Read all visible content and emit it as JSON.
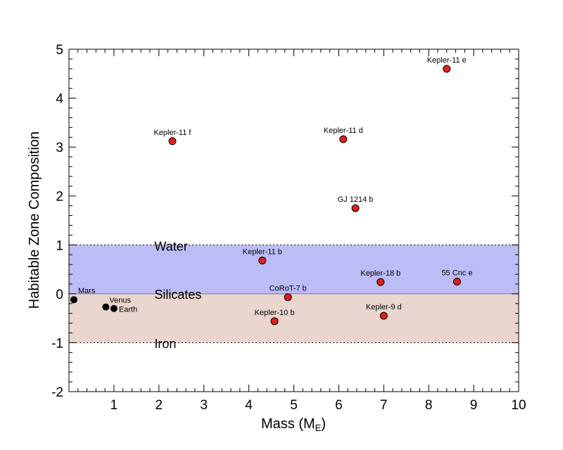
{
  "chart_data": {
    "type": "scatter",
    "xlabel": "Mass (M",
    "xlabel_sub": "E",
    "xlabel_close": ")",
    "ylabel": "Habitable Zone Composition",
    "xlim": [
      0,
      10
    ],
    "ylim": [
      -2,
      5
    ],
    "x_ticks": [
      "1",
      "2",
      "3",
      "4",
      "5",
      "6",
      "7",
      "8",
      "9",
      "10"
    ],
    "y_ticks": [
      "-2",
      "-1",
      "0",
      "1",
      "2",
      "3",
      "4",
      "5"
    ],
    "regions": [
      {
        "name": "Water",
        "y_from": 0,
        "y_to": 1,
        "color": "#bcbcf7",
        "label_x": 1.9,
        "label_y": 0.97
      },
      {
        "name": "Silicates",
        "y_from": -1,
        "y_to": 0,
        "color": "#ead6cf",
        "label_x": 1.9,
        "label_y": -0.02
      },
      {
        "name": "Iron",
        "y_from": -2,
        "y_to": -1,
        "color": "#ffffff",
        "label_x": 1.9,
        "label_y": -1.02
      }
    ],
    "dotted_lines_y": [
      1,
      -1
    ],
    "solar_system": {
      "color": "#000000",
      "points": [
        {
          "name": "Mars",
          "x": 0.11,
          "y": -0.12
        },
        {
          "name": "Venus",
          "x": 0.82,
          "y": -0.27
        },
        {
          "name": "Earth",
          "x": 1.0,
          "y": -0.3
        }
      ]
    },
    "exoplanets": {
      "color": "#e0201c",
      "points": [
        {
          "name": "Kepler-11 e",
          "x": 8.4,
          "y": 4.6
        },
        {
          "name": "Kepler-11 f",
          "x": 2.3,
          "y": 3.12
        },
        {
          "name": "Kepler-11 d",
          "x": 6.1,
          "y": 3.16
        },
        {
          "name": "GJ 1214 b",
          "x": 6.37,
          "y": 1.75
        },
        {
          "name": "Kepler-11 b",
          "x": 4.3,
          "y": 0.68
        },
        {
          "name": "Kepler-18 b",
          "x": 6.93,
          "y": 0.24
        },
        {
          "name": "55 Cnc e",
          "x": 8.63,
          "y": 0.25
        },
        {
          "name": "CoRoT-7 b",
          "x": 4.87,
          "y": -0.07
        },
        {
          "name": "Kepler-10 b",
          "x": 4.57,
          "y": -0.56
        },
        {
          "name": "Kepler-9 d",
          "x": 7.0,
          "y": -0.45
        }
      ]
    }
  }
}
